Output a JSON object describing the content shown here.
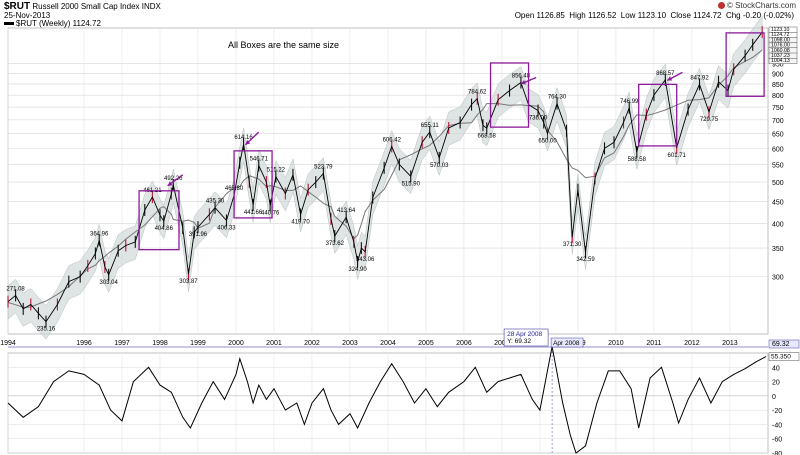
{
  "header": {
    "symbol": "$RUT",
    "name": "Russell 2000 Small Cap Index",
    "exchange": "INDX",
    "date": "25-Nov-2013",
    "legend": "$RUT (Weekly) 1124.72",
    "brand": "© StockCharts.com",
    "open_label": "Open",
    "open": "1126.85",
    "high_label": "High",
    "high": "1126.52",
    "low_label": "Low",
    "low": "1123.10",
    "close_label": "Close",
    "close": "1124.72",
    "chg_label": "Chg",
    "chg": "-0.20 (-0.02%)"
  },
  "annotation": "All Boxes are the same size",
  "chart_data": [
    {
      "type": "line",
      "title": "$RUT Russell 2000 Small Cap Index (Weekly)",
      "scale": "log",
      "ylim": [
        220,
        1150
      ],
      "xlim": [
        1994.0,
        2013.95
      ],
      "y_ticks": [
        300,
        350,
        400,
        450,
        500,
        550,
        600,
        650,
        700,
        750,
        800,
        850,
        900,
        950
      ],
      "right_labels": [
        "1123.10",
        "1124.72",
        "1098.00",
        "1076.00",
        "1060.08",
        "1037.23",
        "1004.13"
      ],
      "x_tick_labels": [
        "1994",
        "1996",
        "1997",
        "1998",
        "1999",
        "2000",
        "2001",
        "2002",
        "2003",
        "2004",
        "2005",
        "2006",
        "2007",
        "2008",
        "2009",
        "2010",
        "2011",
        "2012",
        "2013"
      ],
      "x_tick_years": [
        1994,
        1996,
        1997,
        1998,
        1999,
        2000,
        2001,
        2002,
        2003,
        2004,
        2005,
        2006,
        2007,
        2008,
        2009,
        2010,
        2011,
        2012,
        2013
      ],
      "series": [
        {
          "name": "$RUT weekly close",
          "points": [
            [
              1994.0,
              262
            ],
            [
              1994.2,
              271.08
            ],
            [
              1994.4,
              252
            ],
            [
              1994.6,
              258
            ],
            [
              1994.8,
              246
            ],
            [
              1995.0,
              235.16
            ],
            [
              1995.3,
              258
            ],
            [
              1995.6,
              292
            ],
            [
              1995.9,
              300
            ],
            [
              1996.1,
              318
            ],
            [
              1996.3,
              340
            ],
            [
              1996.4,
              364.96
            ],
            [
              1996.55,
              316
            ],
            [
              1996.65,
              303.04
            ],
            [
              1996.9,
              345
            ],
            [
              1997.1,
              355
            ],
            [
              1997.35,
              362
            ],
            [
              1997.6,
              430
            ],
            [
              1997.8,
              461.21
            ],
            [
              1998.0,
              418
            ],
            [
              1998.1,
              404.86
            ],
            [
              1998.3,
              470
            ],
            [
              1998.35,
              492.26
            ],
            [
              1998.6,
              390
            ],
            [
              1998.75,
              303.87
            ],
            [
              1998.9,
              381
            ],
            [
              1999.0,
              391.96
            ],
            [
              1999.3,
              420
            ],
            [
              1999.45,
              435.3
            ],
            [
              1999.75,
              406.33
            ],
            [
              1999.95,
              465.8
            ],
            [
              2000.1,
              555
            ],
            [
              2000.2,
              614.16
            ],
            [
              2000.35,
              500
            ],
            [
              2000.45,
              441.66
            ],
            [
              2000.6,
              546.7
            ],
            [
              2000.8,
              500
            ],
            [
              2000.9,
              440.76
            ],
            [
              2001.05,
              515.22
            ],
            [
              2001.3,
              470
            ],
            [
              2001.5,
              520
            ],
            [
              2001.7,
              419.7
            ],
            [
              2001.9,
              480
            ],
            [
              2002.1,
              500
            ],
            [
              2002.3,
              523.79
            ],
            [
              2002.5,
              410
            ],
            [
              2002.6,
              373.62
            ],
            [
              2002.9,
              413.64
            ],
            [
              2003.1,
              362
            ],
            [
              2003.2,
              324.9
            ],
            [
              2003.3,
              350
            ],
            [
              2003.4,
              343.06
            ],
            [
              2003.6,
              460
            ],
            [
              2003.9,
              540
            ],
            [
              2004.1,
              606.42
            ],
            [
              2004.3,
              550
            ],
            [
              2004.6,
              515.9
            ],
            [
              2004.9,
              620
            ],
            [
              2005.1,
              655.11
            ],
            [
              2005.35,
              570.03
            ],
            [
              2005.6,
              670
            ],
            [
              2005.9,
              690
            ],
            [
              2006.2,
              760
            ],
            [
              2006.35,
              784.62
            ],
            [
              2006.5,
              680
            ],
            [
              2006.6,
              668.58
            ],
            [
              2006.9,
              780
            ],
            [
              2007.2,
              820
            ],
            [
              2007.5,
              856.48
            ],
            [
              2007.7,
              760
            ],
            [
              2007.95,
              736.0
            ],
            [
              2008.1,
              690
            ],
            [
              2008.2,
              650.0
            ],
            [
              2008.45,
              764.3
            ],
            [
              2008.7,
              660
            ],
            [
              2008.85,
              371.3
            ],
            [
              2009.0,
              480
            ],
            [
              2009.2,
              342.59
            ],
            [
              2009.45,
              510
            ],
            [
              2009.7,
              600
            ],
            [
              2009.95,
              620
            ],
            [
              2010.2,
              690
            ],
            [
              2010.35,
              746.99
            ],
            [
              2010.55,
              588.58
            ],
            [
              2010.8,
              720
            ],
            [
              2011.0,
              800
            ],
            [
              2011.3,
              868.57
            ],
            [
              2011.6,
              601.71
            ],
            [
              2011.9,
              740
            ],
            [
              2012.2,
              847.92
            ],
            [
              2012.45,
              729.75
            ],
            [
              2012.7,
              860
            ],
            [
              2012.95,
              820
            ],
            [
              2013.1,
              920
            ],
            [
              2013.4,
              990
            ],
            [
              2013.6,
              1050
            ],
            [
              2013.85,
              1124.72
            ]
          ]
        }
      ],
      "price_labels": [
        {
          "x": 1994.2,
          "value": "271.08"
        },
        {
          "x": 1995.0,
          "value": "235.16"
        },
        {
          "x": 1996.4,
          "value": "364.96"
        },
        {
          "x": 1996.65,
          "value": "303.04"
        },
        {
          "x": 1997.8,
          "value": "461.21"
        },
        {
          "x": 1998.35,
          "value": "492.26"
        },
        {
          "x": 1998.1,
          "value": "404.86"
        },
        {
          "x": 1998.75,
          "value": "303.87"
        },
        {
          "x": 1999.0,
          "value": "391.96"
        },
        {
          "x": 1999.45,
          "value": "435.30"
        },
        {
          "x": 1999.75,
          "value": "406.33"
        },
        {
          "x": 1999.95,
          "value": "465.80"
        },
        {
          "x": 2000.2,
          "value": "614.16"
        },
        {
          "x": 2000.6,
          "value": "546.71"
        },
        {
          "x": 2000.45,
          "value": "441.66"
        },
        {
          "x": 2000.9,
          "value": "440.76"
        },
        {
          "x": 2001.05,
          "value": "515.22"
        },
        {
          "x": 2001.7,
          "value": "419.70"
        },
        {
          "x": 2002.3,
          "value": "523.79"
        },
        {
          "x": 2002.6,
          "value": "373.62"
        },
        {
          "x": 2002.9,
          "value": "413.64"
        },
        {
          "x": 2003.2,
          "value": "324.90"
        },
        {
          "x": 2003.4,
          "value": "343.06"
        },
        {
          "x": 2004.1,
          "value": "606.42"
        },
        {
          "x": 2004.6,
          "value": "515.90"
        },
        {
          "x": 2005.1,
          "value": "655.11"
        },
        {
          "x": 2005.35,
          "value": "570.03"
        },
        {
          "x": 2006.35,
          "value": "784.62"
        },
        {
          "x": 2006.6,
          "value": "668.58"
        },
        {
          "x": 2007.5,
          "value": "856.48"
        },
        {
          "x": 2007.95,
          "value": "736.00"
        },
        {
          "x": 2008.2,
          "value": "650.00"
        },
        {
          "x": 2008.45,
          "value": "764.30"
        },
        {
          "x": 2008.85,
          "value": "371.30"
        },
        {
          "x": 2009.2,
          "value": "342.59"
        },
        {
          "x": 2010.35,
          "value": "746.99"
        },
        {
          "x": 2010.55,
          "value": "588.58"
        },
        {
          "x": 2011.3,
          "value": "868.57"
        },
        {
          "x": 2011.6,
          "value": "601.71"
        },
        {
          "x": 2012.2,
          "value": "847.92"
        },
        {
          "x": 2012.45,
          "value": "729.75"
        }
      ],
      "boxes": [
        {
          "x0": 1997.45,
          "x1": 1998.5,
          "y0": 347,
          "y1": 477
        },
        {
          "x0": 1999.95,
          "x1": 2000.95,
          "y0": 412,
          "y1": 592
        },
        {
          "x0": 2006.7,
          "x1": 2007.7,
          "y0": 673,
          "y1": 952
        },
        {
          "x0": 2010.6,
          "x1": 2011.6,
          "y0": 608,
          "y1": 848
        },
        {
          "x0": 2012.9,
          "x1": 2013.9,
          "y0": 795,
          "y1": 1120
        }
      ],
      "arrows": [
        {
          "x_from": 1998.6,
          "y_from": 520,
          "x_to": 1998.2,
          "y_to": 490
        },
        {
          "x_from": 2000.6,
          "y_from": 655,
          "x_to": 2000.25,
          "y_to": 612
        },
        {
          "x_from": 2007.9,
          "y_from": 880,
          "x_to": 2007.5,
          "y_to": 850
        },
        {
          "x_from": 2011.75,
          "y_from": 905,
          "x_to": 2011.35,
          "y_to": 866
        }
      ]
    },
    {
      "type": "line",
      "title": "Oscillator",
      "ylim": [
        -80,
        60
      ],
      "y_ticks": [
        40,
        20,
        0,
        -20,
        -40,
        -60,
        -80
      ],
      "value_label": "55.350",
      "current_label": "69.32",
      "tooltip": {
        "date": "28 Apr 2008",
        "y": "Y: 69.32",
        "axis_date": "Apr 2008",
        "x": 2008.32
      },
      "series": [
        {
          "name": "oscillator",
          "points": [
            [
              1994.0,
              -10
            ],
            [
              1994.4,
              -30
            ],
            [
              1994.8,
              -15
            ],
            [
              1995.2,
              20
            ],
            [
              1995.6,
              35
            ],
            [
              1996.0,
              30
            ],
            [
              1996.4,
              15
            ],
            [
              1996.7,
              -20
            ],
            [
              1997.0,
              -35
            ],
            [
              1997.3,
              20
            ],
            [
              1997.7,
              40
            ],
            [
              1998.0,
              15
            ],
            [
              1998.3,
              5
            ],
            [
              1998.6,
              -30
            ],
            [
              1998.8,
              -45
            ],
            [
              1999.1,
              -10
            ],
            [
              1999.4,
              20
            ],
            [
              1999.7,
              -5
            ],
            [
              2000.0,
              30
            ],
            [
              2000.1,
              52
            ],
            [
              2000.3,
              20
            ],
            [
              2000.45,
              -10
            ],
            [
              2000.6,
              15
            ],
            [
              2000.8,
              -5
            ],
            [
              2001.0,
              10
            ],
            [
              2001.3,
              -20
            ],
            [
              2001.6,
              -10
            ],
            [
              2001.8,
              -40
            ],
            [
              2002.0,
              -10
            ],
            [
              2002.3,
              10
            ],
            [
              2002.5,
              -20
            ],
            [
              2002.7,
              -40
            ],
            [
              2003.0,
              -25
            ],
            [
              2003.2,
              -45
            ],
            [
              2003.5,
              -10
            ],
            [
              2003.8,
              20
            ],
            [
              2004.1,
              45
            ],
            [
              2004.4,
              20
            ],
            [
              2004.7,
              -10
            ],
            [
              2005.0,
              10
            ],
            [
              2005.3,
              -15
            ],
            [
              2005.6,
              5
            ],
            [
              2006.0,
              20
            ],
            [
              2006.3,
              40
            ],
            [
              2006.6,
              5
            ],
            [
              2006.9,
              20
            ],
            [
              2007.2,
              25
            ],
            [
              2007.5,
              30
            ],
            [
              2007.8,
              -5
            ],
            [
              2008.0,
              -20
            ],
            [
              2008.32,
              69
            ],
            [
              2008.6,
              -10
            ],
            [
              2008.8,
              -55
            ],
            [
              2008.95,
              -80
            ],
            [
              2009.2,
              -70
            ],
            [
              2009.5,
              -10
            ],
            [
              2009.8,
              35
            ],
            [
              2010.1,
              35
            ],
            [
              2010.4,
              10
            ],
            [
              2010.6,
              -45
            ],
            [
              2010.9,
              25
            ],
            [
              2011.2,
              40
            ],
            [
              2011.5,
              -10
            ],
            [
              2011.65,
              -38
            ],
            [
              2011.9,
              -5
            ],
            [
              2012.2,
              25
            ],
            [
              2012.5,
              -10
            ],
            [
              2012.8,
              20
            ],
            [
              2013.1,
              30
            ],
            [
              2013.4,
              38
            ],
            [
              2013.7,
              48
            ],
            [
              2013.95,
              55
            ]
          ]
        }
      ]
    }
  ]
}
